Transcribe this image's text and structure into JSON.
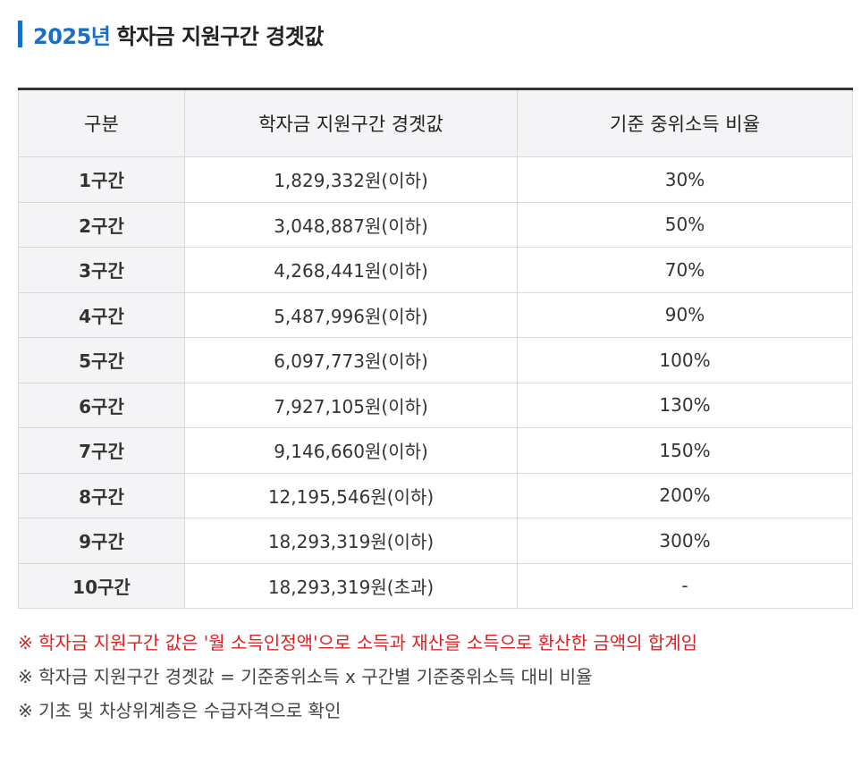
{
  "heading": {
    "year": "2025년",
    "title": "학자금 지원구간 경곗값",
    "accent_color": "#1a6fc4"
  },
  "table": {
    "headers": [
      "구분",
      "학자금 지원구간 경곗값",
      "기준 중위소득 비율"
    ],
    "rows": [
      {
        "band": "1구간",
        "threshold": "1,829,332원(이하)",
        "ratio": "30%"
      },
      {
        "band": "2구간",
        "threshold": "3,048,887원(이하)",
        "ratio": "50%"
      },
      {
        "band": "3구간",
        "threshold": "4,268,441원(이하)",
        "ratio": "70%"
      },
      {
        "band": "4구간",
        "threshold": "5,487,996원(이하)",
        "ratio": "90%"
      },
      {
        "band": "5구간",
        "threshold": "6,097,773원(이하)",
        "ratio": "100%"
      },
      {
        "band": "6구간",
        "threshold": "7,927,105원(이하)",
        "ratio": "130%"
      },
      {
        "band": "7구간",
        "threshold": "9,146,660원(이하)",
        "ratio": "150%"
      },
      {
        "band": "8구간",
        "threshold": "12,195,546원(이하)",
        "ratio": "200%"
      },
      {
        "band": "9구간",
        "threshold": "18,293,319원(이하)",
        "ratio": "300%"
      },
      {
        "band": "10구간",
        "threshold": "18,293,319원(초과)",
        "ratio": "-"
      }
    ]
  },
  "notes": {
    "red": "※ 학자금 지원구간 값은 '월 소득인정액'으로 소득과 재산을 소득으로 환산한 금액의 합계임",
    "formula": "※ 학자금 지원구간 경곗값 = 기준중위소득 x 구간별 기준중위소득 대비 비율",
    "basic": "※ 기초 및 차상위계층은 수급자격으로 확인",
    "red_color": "#e02020"
  }
}
